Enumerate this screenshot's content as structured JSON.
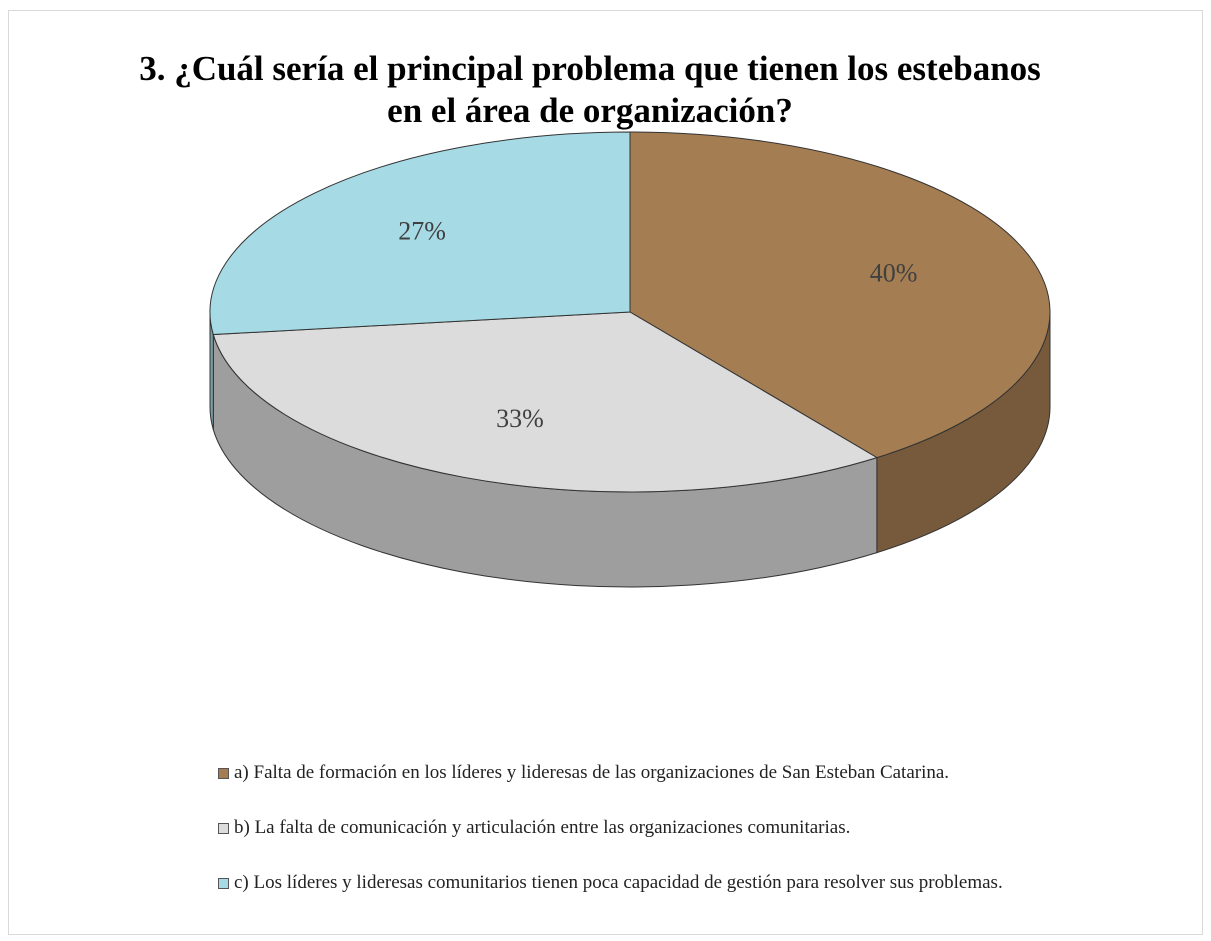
{
  "chart_data": {
    "type": "pie",
    "title": "3. ¿Cuál sería el principal problema que tienen los estebanos en el área de organización?",
    "categories": [
      "a) Falta de formación en los líderes y lideresas de  las organizaciones de San Esteban Catarina.",
      "b) La falta de comunicación y  articulación entre las organizaciones comunitarias.",
      "c) Los líderes y lideresas comunitarios tienen poca capacidad de gestión  para resolver sus problemas."
    ],
    "values": [
      40,
      33,
      27
    ],
    "value_labels": [
      "40%",
      "33%",
      "27%"
    ],
    "colors": [
      "#a47d52",
      "#dcdcdc",
      "#a6dbe6"
    ],
    "legend": "bottom"
  }
}
